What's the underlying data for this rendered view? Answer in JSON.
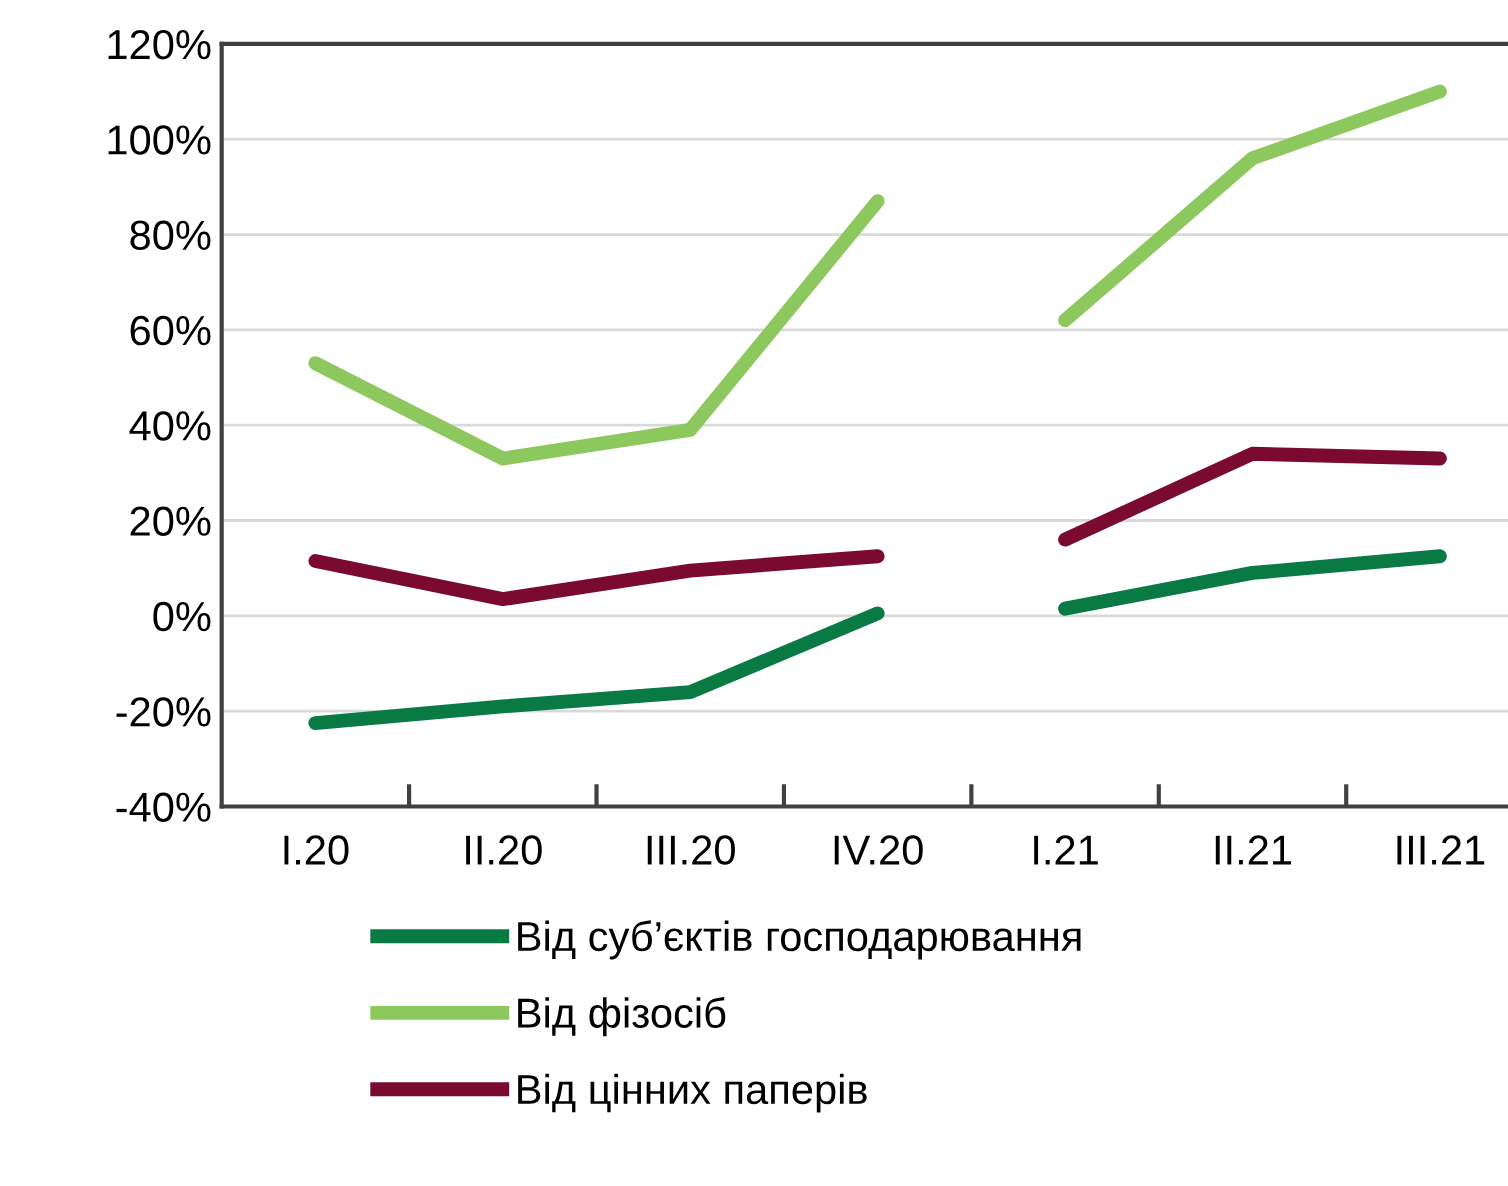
{
  "chart_data": {
    "type": "line",
    "categories": [
      "I.20",
      "II.20",
      "III.20",
      "IV.20",
      "I.21",
      "II.21",
      "III.21"
    ],
    "series": [
      {
        "name": "Від суб’єктів господарювання",
        "color": "#0a7a45",
        "values": [
          -22.5,
          -19,
          -16,
          0.5,
          null,
          null,
          null
        ]
      },
      {
        "color": "#0a7a45",
        "values": [
          null,
          null,
          null,
          null,
          1.5,
          9,
          12.5
        ]
      },
      {
        "name": "Від фізосіб",
        "color": "#8dc85f",
        "values": [
          53,
          33,
          39,
          87,
          null,
          null,
          null
        ]
      },
      {
        "color": "#8dc85f",
        "values": [
          null,
          null,
          null,
          null,
          62,
          96,
          110
        ]
      },
      {
        "name": "Від цінних паперів",
        "color": "#7a0a30",
        "values": [
          11.5,
          3.5,
          9.5,
          12.5,
          null,
          null,
          null
        ]
      },
      {
        "color": "#7a0a30",
        "values": [
          null,
          null,
          null,
          null,
          16,
          34,
          33
        ]
      }
    ],
    "ylim": [
      -40,
      120
    ],
    "yticks": [
      {
        "value": -40,
        "label": "-40%"
      },
      {
        "value": -20,
        "label": "-20%"
      },
      {
        "value": 0,
        "label": "0%"
      },
      {
        "value": 20,
        "label": "20%"
      },
      {
        "value": 40,
        "label": "40%"
      },
      {
        "value": 60,
        "label": "60%"
      },
      {
        "value": 80,
        "label": "80%"
      },
      {
        "value": 100,
        "label": "100%"
      },
      {
        "value": 120,
        "label": "120%"
      }
    ],
    "grid": "y",
    "legend": "bottom",
    "marker": "none",
    "line_style": "solid"
  }
}
